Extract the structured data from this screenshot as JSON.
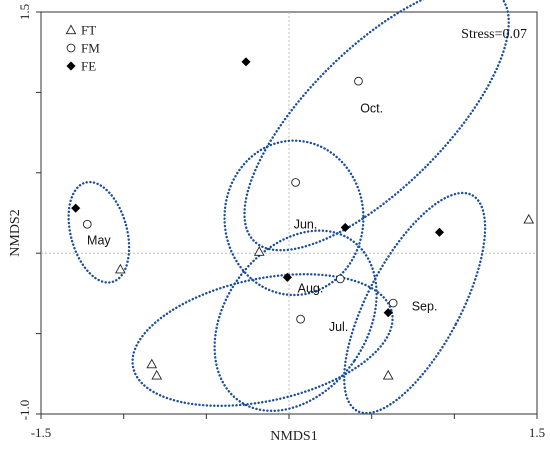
{
  "chart_data": {
    "type": "scatter",
    "xlabel": "NMDS1",
    "ylabel": "NMDS2",
    "xlim": [
      -1.5,
      1.5
    ],
    "ylim": [
      -1.0,
      1.5
    ],
    "x_ticks": [
      "-1.5",
      "1.5"
    ],
    "y_ticks": [
      "1.5",
      "-1.0"
    ],
    "grid": false,
    "zero_reference_lines": true,
    "annotation": "Stress=0.07",
    "legend_placement": "top-left",
    "series": [
      {
        "name": "FT",
        "marker": "open-triangle",
        "points": [
          {
            "x": -1.02,
            "y": -0.1,
            "group": "May"
          },
          {
            "x": -0.18,
            "y": 0.01,
            "group": "Jun."
          },
          {
            "x": 1.45,
            "y": 0.21,
            "group": "Oct."
          },
          {
            "x": -0.8,
            "y": -0.76,
            "group": "Aug."
          },
          {
            "x": -0.83,
            "y": -0.69,
            "group": "Jul."
          },
          {
            "x": 0.6,
            "y": -0.76,
            "group": "Sep."
          }
        ]
      },
      {
        "name": "FM",
        "marker": "open-circle",
        "points": [
          {
            "x": -1.22,
            "y": 0.18,
            "group": "May"
          },
          {
            "x": 0.04,
            "y": 0.44,
            "group": "Jun."
          },
          {
            "x": 0.42,
            "y": 1.07,
            "group": "Oct."
          },
          {
            "x": 0.31,
            "y": -0.16,
            "group": "Aug."
          },
          {
            "x": 0.07,
            "y": -0.41,
            "group": "Jul."
          },
          {
            "x": 0.63,
            "y": -0.31,
            "group": "Sep."
          }
        ]
      },
      {
        "name": "FE",
        "marker": "filled-diamond",
        "points": [
          {
            "x": -1.29,
            "y": 0.28,
            "group": "May"
          },
          {
            "x": 0.34,
            "y": 0.16,
            "group": "Jun."
          },
          {
            "x": -0.26,
            "y": 1.19,
            "group": "Oct."
          },
          {
            "x": -0.01,
            "y": -0.15,
            "group": "Aug."
          },
          {
            "x": 0.6,
            "y": -0.37,
            "group": "Sep."
          },
          {
            "x": 0.91,
            "y": 0.13,
            "group": "Sep."
          }
        ]
      }
    ],
    "groups": [
      {
        "label": "May",
        "cx": -1.15,
        "cy": 0.13,
        "rx": 0.17,
        "ry": 0.32,
        "angle": -15,
        "label_pos": [
          -1.15,
          0.08
        ]
      },
      {
        "label": "Jun.",
        "cx": 0.03,
        "cy": 0.22,
        "rx": 0.42,
        "ry": 0.48,
        "angle": 0,
        "label_pos": [
          0.1,
          0.18
        ]
      },
      {
        "label": "Oct.",
        "cx": 0.53,
        "cy": 0.84,
        "rx": 1.05,
        "ry": 0.43,
        "angle": -45,
        "label_pos": [
          0.5,
          0.9
        ]
      },
      {
        "label": "Aug.",
        "cx": 0.04,
        "cy": -0.42,
        "rx": 0.43,
        "ry": 0.61,
        "angle": 35,
        "label_pos": [
          0.13,
          -0.22
        ]
      },
      {
        "label": "Jul.",
        "cx": -0.16,
        "cy": -0.54,
        "rx": 0.8,
        "ry": 0.38,
        "angle": -12,
        "label_pos": [
          0.3,
          -0.46
        ]
      },
      {
        "label": "Sep.",
        "cx": 0.76,
        "cy": -0.31,
        "rx": 0.28,
        "ry": 0.76,
        "angle": 28,
        "label_pos": [
          0.82,
          -0.33
        ]
      }
    ]
  }
}
